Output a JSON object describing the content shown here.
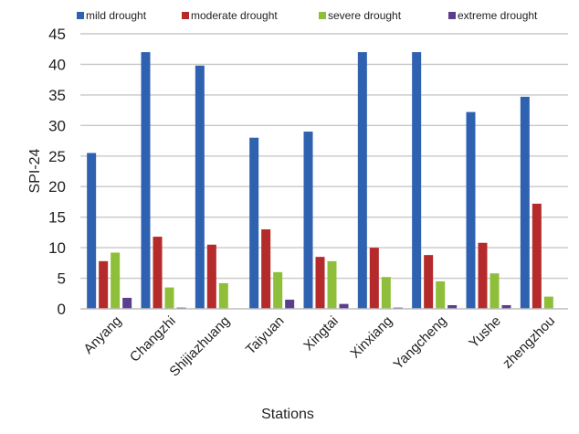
{
  "chart_data": {
    "type": "bar",
    "title": "",
    "xlabel": "Stations",
    "ylabel": "SPI-24",
    "ylim": [
      0,
      45
    ],
    "yticks": [
      0,
      5,
      10,
      15,
      20,
      25,
      30,
      35,
      40,
      45
    ],
    "grid": true,
    "legend_position": "top",
    "categories": [
      "Anyang",
      "Changzhi",
      "Shijiazhuang",
      "Taiyuan",
      "Xingtai",
      "Xinxiang",
      "Yangcheng",
      "Yushe",
      "zhengzhou"
    ],
    "series": [
      {
        "name": "mild drought",
        "color": "#2e62b0",
        "values": [
          25.5,
          42,
          39.8,
          28,
          29,
          42,
          42,
          32.2,
          34.7
        ]
      },
      {
        "name": "moderate drought",
        "color": "#b52a2a",
        "values": [
          7.8,
          11.8,
          10.5,
          13,
          8.5,
          10,
          8.8,
          10.8,
          17.2
        ]
      },
      {
        "name": "severe drought",
        "color": "#8fbf3a",
        "values": [
          9.2,
          3.5,
          4.2,
          6,
          7.8,
          5.2,
          4.5,
          5.8,
          2
        ]
      },
      {
        "name": "extreme drought",
        "color": "#5b3e8e",
        "values": [
          1.8,
          0.2,
          0,
          1.5,
          0.8,
          0.2,
          0.6,
          0.6,
          0
        ]
      }
    ]
  }
}
